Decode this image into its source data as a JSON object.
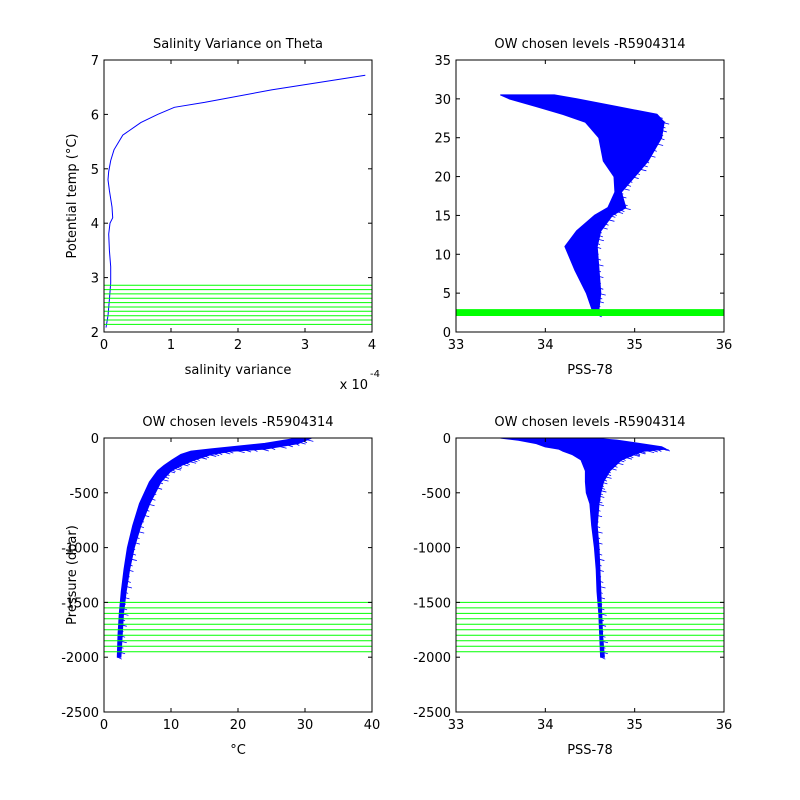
{
  "figure": {
    "background": "#ffffff",
    "colors": {
      "profile": "#0000ff",
      "levels": "#00ff00",
      "axes": "#000000"
    }
  },
  "chart_data": [
    {
      "id": "ax1",
      "type": "line",
      "title": "Salinity Variance on Theta",
      "xlabel": "salinity variance",
      "ylabel": "Potential temp (°C)",
      "xlim": [
        0,
        4
      ],
      "ylim": [
        2,
        7
      ],
      "x_scale_label": "x 10",
      "x_scale_exp": "-4",
      "xticks": [
        0,
        1,
        2,
        3,
        4
      ],
      "xtick_labels": [
        "0",
        "1",
        "2",
        "3",
        "4"
      ],
      "yticks": [
        2,
        3,
        4,
        5,
        6,
        7
      ],
      "ytick_labels": [
        "2",
        "3",
        "4",
        "5",
        "6",
        "7"
      ],
      "series": [
        {
          "color": "#0000ff",
          "x": [
            0.03,
            0.06,
            0.08,
            0.1,
            0.1,
            0.08,
            0.07,
            0.09,
            0.13,
            0.12,
            0.08,
            0.06,
            0.07,
            0.1,
            0.15,
            0.28,
            0.55,
            0.8,
            1.05,
            1.5,
            2.5,
            3.9
          ],
          "y": [
            2.08,
            2.3,
            2.6,
            2.9,
            3.2,
            3.5,
            3.8,
            4.0,
            4.1,
            4.3,
            4.6,
            4.8,
            4.95,
            5.15,
            5.35,
            5.62,
            5.85,
            6.0,
            6.13,
            6.22,
            6.45,
            6.72
          ]
        }
      ],
      "hlines": {
        "color": "#00ff00",
        "y": [
          2.14,
          2.22,
          2.3,
          2.38,
          2.46,
          2.54,
          2.62,
          2.7,
          2.78,
          2.86
        ]
      }
    },
    {
      "id": "ax2",
      "type": "line",
      "title": "OW chosen levels -R5904314",
      "xlabel": "PSS-78",
      "ylabel": "",
      "xlim": [
        33,
        36
      ],
      "ylim": [
        0,
        35
      ],
      "xticks": [
        33,
        34,
        35,
        36
      ],
      "xtick_labels": [
        "33",
        "34",
        "35",
        "36"
      ],
      "yticks": [
        0,
        5,
        10,
        15,
        20,
        25,
        30,
        35
      ],
      "ytick_labels": [
        "0",
        "5",
        "10",
        "15",
        "20",
        "25",
        "30",
        "35"
      ],
      "profile_band": {
        "color": "#0000ff",
        "y": [
          2.2,
          3.0,
          5.0,
          8.0,
          11.0,
          13.0,
          15.0,
          16.0,
          18.0,
          20.0,
          22.0,
          25.0,
          27.0,
          28.0,
          29.0,
          30.0,
          30.5
        ],
        "x_left": [
          34.58,
          34.52,
          34.46,
          34.33,
          34.22,
          34.35,
          34.55,
          34.7,
          34.78,
          34.77,
          34.65,
          34.6,
          34.45,
          34.2,
          33.9,
          33.6,
          33.5
        ],
        "x_right": [
          34.62,
          34.6,
          34.62,
          34.6,
          34.58,
          34.62,
          34.75,
          34.9,
          34.85,
          35.0,
          35.15,
          35.3,
          35.33,
          35.25,
          34.8,
          34.35,
          34.1
        ]
      },
      "hlines": {
        "color": "#00ff00",
        "y": [
          2.15,
          2.25,
          2.35,
          2.45,
          2.55,
          2.65,
          2.75,
          2.85
        ]
      }
    },
    {
      "id": "ax3",
      "type": "line",
      "title": "OW chosen levels -R5904314",
      "xlabel": "°C",
      "ylabel": "Pressure (dbar)",
      "xlim": [
        0,
        40
      ],
      "ylim": [
        -2500,
        0
      ],
      "xticks": [
        0,
        10,
        20,
        30,
        40
      ],
      "xtick_labels": [
        "0",
        "10",
        "20",
        "30",
        "40"
      ],
      "yticks": [
        -2500,
        -2000,
        -1500,
        -1000,
        -500,
        0
      ],
      "ytick_labels": [
        "-2500",
        "-2000",
        "-1500",
        "-1000",
        "-500",
        "0"
      ],
      "profile_band": {
        "color": "#0000ff",
        "y": [
          -2000,
          -1800,
          -1600,
          -1400,
          -1200,
          -1000,
          -800,
          -600,
          -400,
          -300,
          -250,
          -200,
          -150,
          -120,
          -100,
          -50,
          0
        ],
        "x_left": [
          2.0,
          2.1,
          2.3,
          2.6,
          3.0,
          3.5,
          4.3,
          5.3,
          6.8,
          8.0,
          9.0,
          10.2,
          11.5,
          13.0,
          16.0,
          24.0,
          29.0
        ],
        "x_right": [
          2.5,
          2.7,
          2.9,
          3.3,
          3.8,
          4.5,
          5.5,
          6.8,
          8.5,
          10.0,
          11.5,
          13.5,
          16.0,
          19.0,
          24.0,
          29.0,
          31.0
        ]
      },
      "hlines": {
        "color": "#00ff00",
        "y": [
          -1500,
          -1550,
          -1600,
          -1650,
          -1700,
          -1750,
          -1800,
          -1850,
          -1900,
          -1950
        ]
      }
    },
    {
      "id": "ax4",
      "type": "line",
      "title": "OW chosen levels -R5904314",
      "xlabel": "PSS-78",
      "ylabel": "",
      "xlim": [
        33,
        36
      ],
      "ylim": [
        -2500,
        0
      ],
      "xticks": [
        33,
        34,
        35,
        36
      ],
      "xtick_labels": [
        "33",
        "34",
        "35",
        "36"
      ],
      "yticks": [
        -2500,
        -2000,
        -1500,
        -1000,
        -500,
        0
      ],
      "ytick_labels": [
        "-2500",
        "-2000",
        "-1500",
        "-1000",
        "-500",
        "0"
      ],
      "profile_band": {
        "color": "#0000ff",
        "y": [
          -2000,
          -1800,
          -1600,
          -1400,
          -1200,
          -1000,
          -800,
          -600,
          -500,
          -400,
          -300,
          -200,
          -150,
          -120,
          -100,
          -80,
          -50,
          -20,
          0
        ],
        "x_left": [
          34.62,
          34.61,
          34.6,
          34.58,
          34.57,
          34.55,
          34.52,
          34.5,
          34.46,
          34.45,
          34.45,
          34.4,
          34.3,
          34.2,
          34.15,
          34.0,
          33.9,
          33.7,
          33.5
        ],
        "x_right": [
          34.66,
          34.64,
          34.63,
          34.62,
          34.61,
          34.6,
          34.58,
          34.6,
          34.62,
          34.65,
          34.72,
          34.85,
          35.0,
          35.1,
          35.35,
          35.3,
          35.05,
          34.8,
          34.5
        ]
      },
      "hlines": {
        "color": "#00ff00",
        "y": [
          -1500,
          -1550,
          -1600,
          -1650,
          -1700,
          -1750,
          -1800,
          -1850,
          -1900,
          -1950
        ]
      }
    }
  ]
}
